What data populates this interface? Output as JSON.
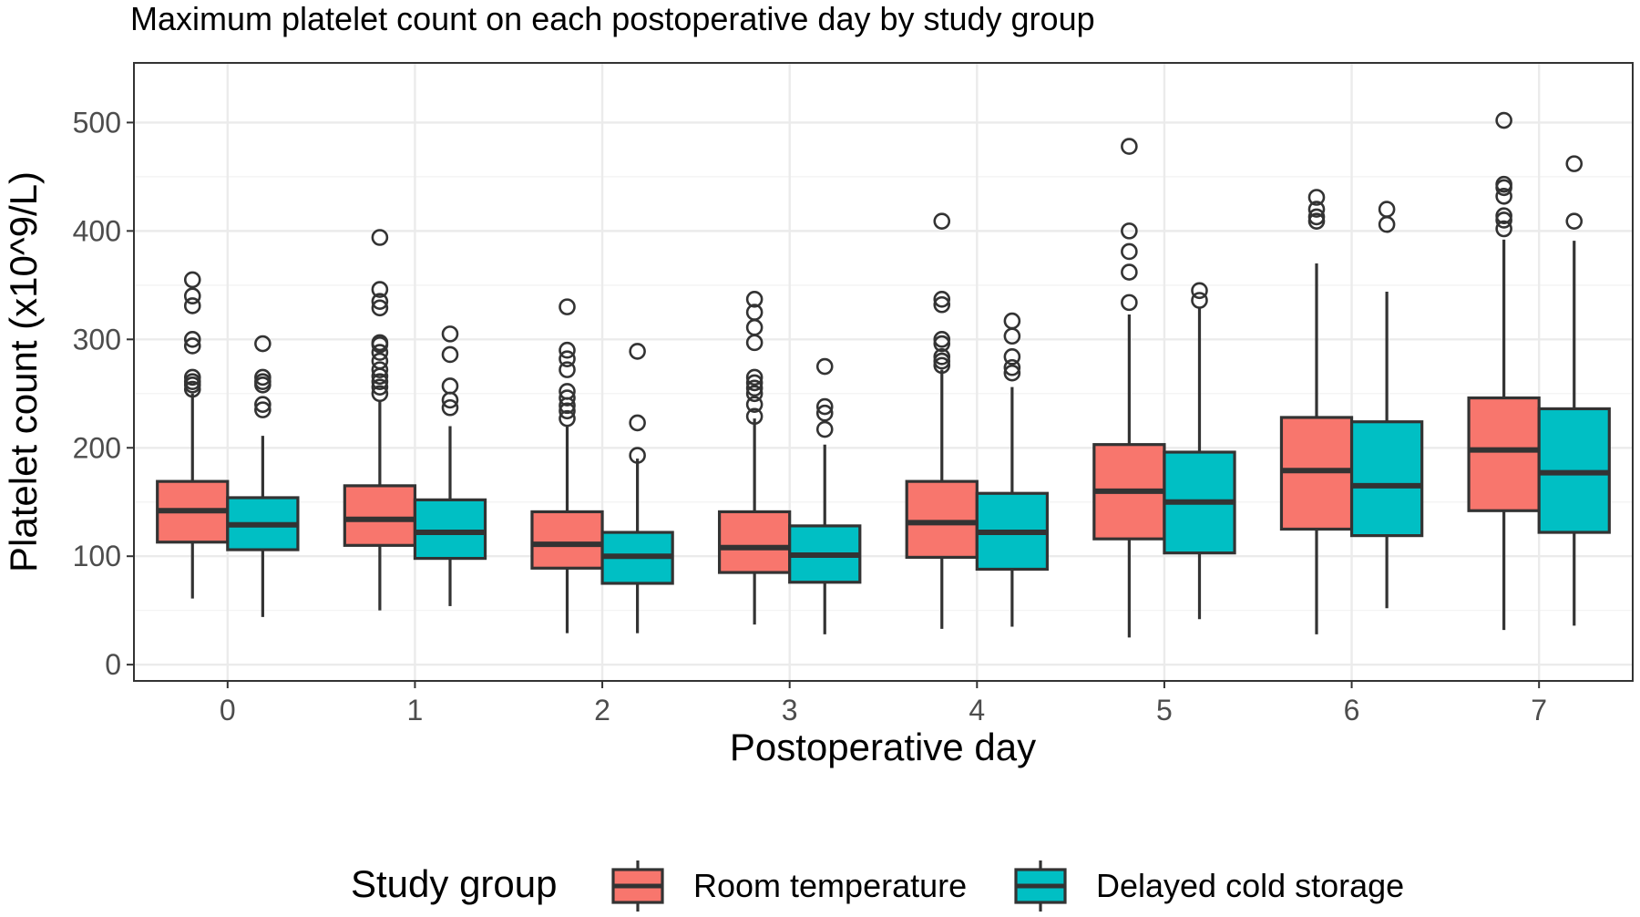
{
  "chart_data": {
    "type": "boxplot",
    "title": "Maximum platelet count on each postoperative day by study group",
    "xlabel": "Postoperative day",
    "ylabel": "Platelet count (x10^9/L)",
    "categories": [
      "0",
      "1",
      "2",
      "3",
      "4",
      "5",
      "6",
      "7"
    ],
    "ylim": [
      -15,
      555
    ],
    "yticks": [
      0,
      100,
      200,
      300,
      400,
      500
    ],
    "grid": true,
    "legend": {
      "title": "Study group",
      "position": "bottom"
    },
    "series": [
      {
        "name": "Room temperature",
        "color": "#F8766D",
        "boxes": [
          {
            "day": "0",
            "min": 61,
            "q1": 113,
            "median": 142,
            "q3": 169,
            "max": 250,
            "outliers": [
              355,
              340,
              331,
              300,
              294,
              265,
              261,
              258,
              254
            ]
          },
          {
            "day": "1",
            "min": 50,
            "q1": 110,
            "median": 134,
            "q3": 165,
            "max": 244,
            "outliers": [
              394,
              346,
              335,
              329,
              297,
              295,
              288,
              280,
              272,
              266,
              261,
              256,
              250
            ]
          },
          {
            "day": "2",
            "min": 29,
            "q1": 89,
            "median": 111,
            "q3": 141,
            "max": 220,
            "outliers": [
              330,
              290,
              282,
              272,
              252,
              246,
              239,
              234,
              227
            ]
          },
          {
            "day": "3",
            "min": 37,
            "q1": 85,
            "median": 108,
            "q3": 141,
            "max": 227,
            "outliers": [
              337,
              325,
              311,
              297,
              265,
              260,
              255,
              250,
              240,
              229
            ]
          },
          {
            "day": "4",
            "min": 33,
            "q1": 99,
            "median": 131,
            "q3": 169,
            "max": 272,
            "outliers": [
              409,
              337,
              332,
              300,
              296,
              284,
              280,
              276
            ]
          },
          {
            "day": "5",
            "min": 25,
            "q1": 116,
            "median": 160,
            "q3": 203,
            "max": 323,
            "outliers": [
              478,
              400,
              381,
              362,
              334
            ]
          },
          {
            "day": "6",
            "min": 28,
            "q1": 125,
            "median": 179,
            "q3": 228,
            "max": 370,
            "outliers": [
              431,
              420,
              413,
              409
            ]
          },
          {
            "day": "7",
            "min": 32,
            "q1": 142,
            "median": 198,
            "q3": 246,
            "max": 392,
            "outliers": [
              502,
              443,
              440,
              432,
              414,
              410,
              402
            ]
          }
        ]
      },
      {
        "name": "Delayed cold storage",
        "color": "#00BFC4",
        "boxes": [
          {
            "day": "0",
            "min": 44,
            "q1": 106,
            "median": 129,
            "q3": 154,
            "max": 211,
            "outliers": [
              296,
              265,
              261,
              258,
              240,
              235
            ]
          },
          {
            "day": "1",
            "min": 54,
            "q1": 98,
            "median": 122,
            "q3": 152,
            "max": 220,
            "outliers": [
              305,
              286,
              257,
              244,
              237
            ]
          },
          {
            "day": "2",
            "min": 29,
            "q1": 75,
            "median": 100,
            "q3": 122,
            "max": 190,
            "outliers": [
              289,
              223,
              193
            ]
          },
          {
            "day": "3",
            "min": 28,
            "q1": 76,
            "median": 101,
            "q3": 128,
            "max": 203,
            "outliers": [
              275,
              238,
              232,
              217
            ]
          },
          {
            "day": "4",
            "min": 35,
            "q1": 88,
            "median": 122,
            "q3": 158,
            "max": 256,
            "outliers": [
              317,
              303,
              284,
              274,
              269
            ]
          },
          {
            "day": "5",
            "min": 42,
            "q1": 103,
            "median": 150,
            "q3": 196,
            "max": 329,
            "outliers": [
              345,
              336
            ]
          },
          {
            "day": "6",
            "min": 52,
            "q1": 119,
            "median": 165,
            "q3": 224,
            "max": 344,
            "outliers": [
              420,
              406
            ]
          },
          {
            "day": "7",
            "min": 36,
            "q1": 122,
            "median": 177,
            "q3": 236,
            "max": 391,
            "outliers": [
              462,
              409
            ]
          }
        ]
      }
    ]
  }
}
